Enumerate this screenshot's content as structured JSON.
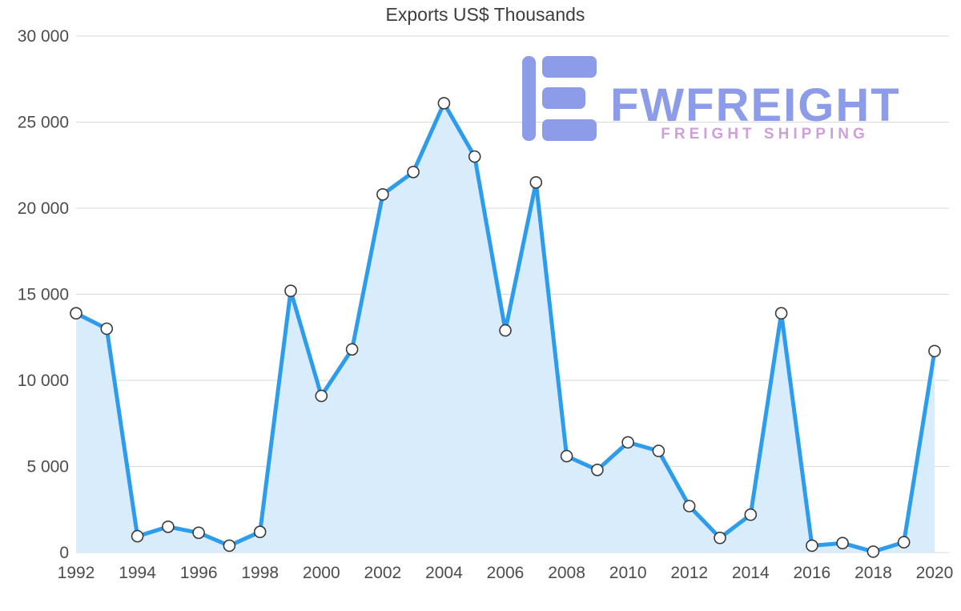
{
  "logo": {
    "name": "FWFREIGHT",
    "tagline": "FREIGHT SHIPPING",
    "color": "#8d9ce9",
    "tagline_color": "#cf9fd9"
  },
  "chart_data": {
    "type": "line",
    "title": "Exports US$ Thousands",
    "x": [
      1992,
      1993,
      1994,
      1995,
      1996,
      1997,
      1998,
      1999,
      2000,
      2001,
      2002,
      2003,
      2004,
      2005,
      2006,
      2007,
      2008,
      2009,
      2010,
      2011,
      2012,
      2013,
      2014,
      2015,
      2016,
      2017,
      2018,
      2019,
      2020
    ],
    "values": [
      13900,
      13000,
      950,
      1500,
      1150,
      400,
      1200,
      15200,
      9100,
      11800,
      20800,
      22100,
      26100,
      23000,
      12900,
      21500,
      5600,
      4800,
      6400,
      5900,
      2700,
      850,
      2200,
      13900,
      400,
      550,
      50,
      600,
      11700
    ],
    "ylim": [
      0,
      30000
    ],
    "yticks": [
      0,
      5000,
      10000,
      15000,
      20000,
      25000,
      30000
    ],
    "xticks": [
      1992,
      1994,
      1996,
      1998,
      2000,
      2002,
      2004,
      2006,
      2008,
      2010,
      2012,
      2014,
      2016,
      2018,
      2020
    ],
    "grid": true,
    "legend": "none",
    "line_color": "#2d9ced",
    "area_color": "#d9ecfb",
    "marker_fill": "#ffffff",
    "marker_stroke": "#3a3a3a",
    "grid_color": "#dadada"
  }
}
